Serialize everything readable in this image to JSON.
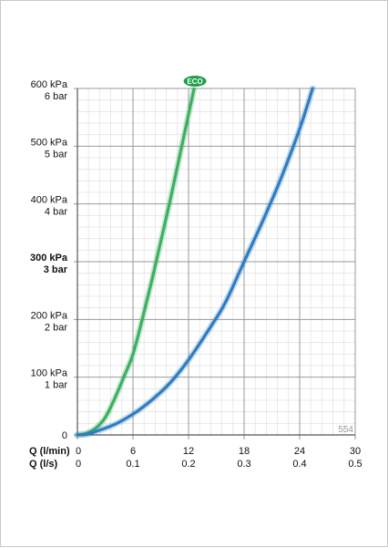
{
  "chart_data": {
    "type": "line",
    "xlabel_primary": "Q (l/min)",
    "xlabel_secondary": "Q (l/s)",
    "x_ticks_primary": [
      "0",
      "6",
      "12",
      "18",
      "24",
      "30"
    ],
    "x_ticks_secondary": [
      "0",
      "0.1",
      "0.2",
      "0.3",
      "0.4",
      "0.5"
    ],
    "xlim": [
      0,
      30
    ],
    "ylim": [
      0,
      600
    ],
    "y_ticks": [
      {
        "value": 0,
        "kpa": "0",
        "bar": "",
        "bold": false
      },
      {
        "value": 100,
        "kpa": "100 kPa",
        "bar": "1 bar",
        "bold": false
      },
      {
        "value": 200,
        "kpa": "200 kPa",
        "bar": "2 bar",
        "bold": false
      },
      {
        "value": 300,
        "kpa": "300 kPa",
        "bar": "3 bar",
        "bold": true
      },
      {
        "value": 400,
        "kpa": "400 kPa",
        "bar": "4 bar",
        "bold": false
      },
      {
        "value": 500,
        "kpa": "500 kPa",
        "bar": "5 bar",
        "bold": false
      },
      {
        "value": 600,
        "kpa": "600 kPa",
        "bar": "6 bar",
        "bold": false
      }
    ],
    "grid": true,
    "series": [
      {
        "color": "#3ab061",
        "x": [
          0,
          1,
          2,
          3,
          4,
          5,
          6,
          7,
          8,
          9,
          10,
          11,
          12,
          12.6
        ],
        "y": [
          0,
          3,
          12,
          30,
          62,
          100,
          140,
          200,
          265,
          335,
          405,
          480,
          555,
          600
        ]
      },
      {
        "color": "#2e7cc2",
        "x": [
          0,
          1,
          2,
          4,
          6,
          8,
          10,
          12,
          14.5,
          16,
          18,
          20,
          22,
          24,
          25.4
        ],
        "y": [
          0,
          1,
          6,
          18,
          36,
          60,
          90,
          130,
          190,
          230,
          300,
          370,
          445,
          530,
          600
        ]
      }
    ],
    "badge": {
      "text": "ECO",
      "color": "#1e9e4a"
    },
    "code": "554"
  }
}
